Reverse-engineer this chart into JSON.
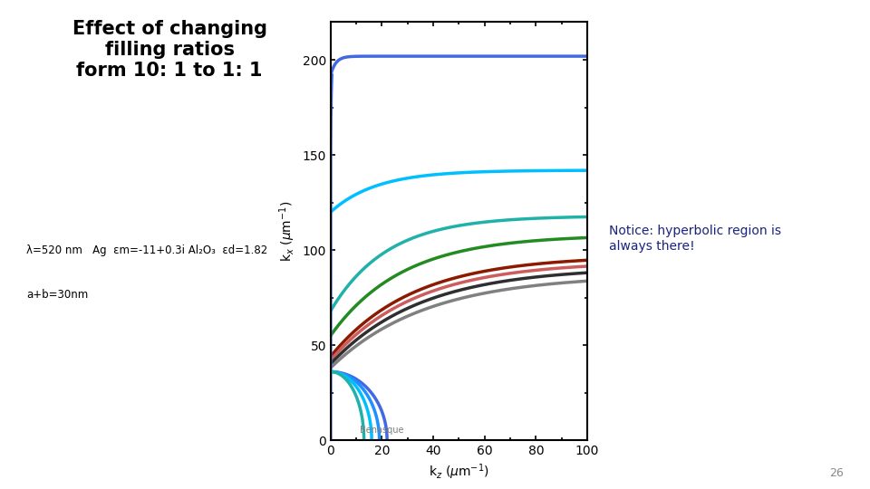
{
  "title": "Effect of changing\nfilling ratios\nform 10: 1 to 1: 1",
  "subtitle_line1": "λ=520 nm   Ag  εm=-11+0.3i Al₂O₃  εd=1.82",
  "subtitle_line2": "a+b=30nm",
  "notice_text": "Notice: hyperbolic region is\nalways there!",
  "xlabel": "k_z (μm⁻¹)",
  "ylabel": "k_x (μm⁻¹)",
  "xlim": [
    0,
    100
  ],
  "ylim": [
    0,
    220
  ],
  "xticks": [
    0,
    20,
    40,
    60,
    80,
    100
  ],
  "yticks": [
    0,
    50,
    100,
    150,
    200
  ],
  "watermark": "Benasque",
  "page_number": "26",
  "background_color": "#ffffff",
  "hyp_curves": [
    {
      "color": "#4169E1",
      "kx0": 192,
      "kx_inf": 202,
      "tau": 2,
      "lw": 2.5
    },
    {
      "color": "#00BFFF",
      "kx0": 120,
      "kx_inf": 142,
      "tau": 18,
      "lw": 2.5
    },
    {
      "color": "#20B2AA",
      "kx0": 68,
      "kx_inf": 118,
      "tau": 22,
      "lw": 2.5
    },
    {
      "color": "#228B22",
      "kx0": 55,
      "kx_inf": 108,
      "tau": 28,
      "lw": 2.5
    },
    {
      "color": "#8B1A00",
      "kx0": 44,
      "kx_inf": 97,
      "tau": 32,
      "lw": 2.5
    },
    {
      "color": "#CD5C5C",
      "kx0": 42,
      "kx_inf": 94,
      "tau": 33,
      "lw": 2.5
    },
    {
      "color": "#2F2F2F",
      "kx0": 40,
      "kx_inf": 91,
      "tau": 35,
      "lw": 2.5
    },
    {
      "color": "#808080",
      "kx0": 38,
      "kx_inf": 87,
      "tau": 37,
      "lw": 2.5
    }
  ],
  "ell_curves": [
    {
      "color": "#4169E1",
      "kx_a": 36,
      "kz_b": 22,
      "lw": 2.5
    },
    {
      "color": "#1E90FF",
      "kx_a": 36,
      "kz_b": 19,
      "lw": 2.5
    },
    {
      "color": "#00BFFF",
      "kx_a": 36,
      "kz_b": 16,
      "lw": 2.5
    },
    {
      "color": "#20B2AA",
      "kx_a": 36,
      "kz_b": 13,
      "lw": 2.5
    }
  ]
}
